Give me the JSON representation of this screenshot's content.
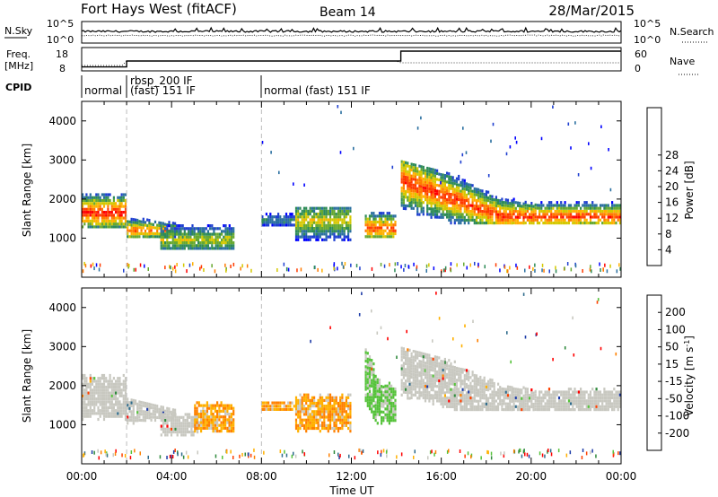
{
  "header": {
    "station": "Fort Hays West (fitACF)",
    "beam": "Beam 14",
    "date": "28/Mar/2015"
  },
  "sky_panel": {
    "left_label": "N.Sky",
    "right_label": "N.Search",
    "ticks": [
      "10^5",
      "10^0"
    ]
  },
  "freq_panel": {
    "left_label_line1": "Freq.",
    "left_label_line2": "[MHz]",
    "left_ticks": [
      "18",
      "8"
    ],
    "right_ticks": [
      "60",
      "0"
    ],
    "right_label": "Nave",
    "freq_steps": [
      {
        "from_hour": 0,
        "to_hour": 2.0,
        "mhz": 10
      },
      {
        "from_hour": 2.0,
        "to_hour": 14.2,
        "mhz": 13
      },
      {
        "from_hour": 14.2,
        "to_hour": 24,
        "mhz": 18
      }
    ]
  },
  "cpid": {
    "label": "CPID",
    "segments": [
      {
        "text": "normal",
        "from_hour": 0
      },
      {
        "text": "rbsp_200 IF",
        "from_hour": 2.0
      },
      {
        "text": "(fast) 151 IF",
        "from_hour": 2.0
      },
      {
        "text": "normal (fast) 151 IF",
        "from_hour": 8.0
      }
    ]
  },
  "chart_data": [
    {
      "type": "heatmap",
      "name": "power",
      "ylabel": "Slant Range [km]",
      "xlabel": "",
      "xlim": [
        0,
        24
      ],
      "ylim": [
        0,
        4500
      ],
      "yticks": [
        "1000",
        "2000",
        "3000",
        "4000"
      ],
      "xticks": [
        "00:00",
        "04:00",
        "08:00",
        "12:00",
        "16:00",
        "20:00",
        "00:00"
      ],
      "colorbar": {
        "label": "Power [dB]",
        "ticks": [
          "4",
          "8",
          "12",
          "16",
          "20",
          "24",
          "28"
        ],
        "colors": [
          "#0000ff",
          "#1f3fd0",
          "#2a6fa0",
          "#2e8b57",
          "#66a830",
          "#d4c800",
          "#ffb000",
          "#ff7a00",
          "#ff3b00",
          "#ff0000"
        ]
      },
      "regions": [
        {
          "t0": 0.0,
          "t1": 2.0,
          "r0": 1250,
          "r1": 2300,
          "peak": 1650,
          "strength": 0.95
        },
        {
          "t0": 2.0,
          "t1": 4.2,
          "r0": 1000,
          "r1": 1700,
          "peak": 1200,
          "strength": 0.8
        },
        {
          "t0": 3.5,
          "t1": 6.8,
          "r0": 700,
          "r1": 1500,
          "peak": 950,
          "strength": 0.55
        },
        {
          "t0": 8.0,
          "t1": 9.5,
          "r0": 1300,
          "r1": 1650,
          "peak": 1450,
          "strength": 0.35
        },
        {
          "t0": 9.5,
          "t1": 12.0,
          "r0": 700,
          "r1": 1800,
          "peak": 1450,
          "strength": 0.6
        },
        {
          "t0": 12.6,
          "t1": 14.0,
          "r0": 1000,
          "r1": 1900,
          "peak": 1250,
          "strength": 0.85
        },
        {
          "t0": 14.2,
          "t1": 24.0,
          "r0": 1350,
          "r1": 3000,
          "peak": 1550,
          "strength": 0.9
        }
      ]
    },
    {
      "type": "heatmap",
      "name": "velocity",
      "ylabel": "Slant Range [km]",
      "xlabel": "Time UT",
      "xlim": [
        0,
        24
      ],
      "ylim": [
        0,
        4500
      ],
      "yticks": [
        "1000",
        "2000",
        "3000",
        "4000"
      ],
      "xticks": [
        "00:00",
        "04:00",
        "08:00",
        "12:00",
        "16:00",
        "20:00",
        "00:00"
      ],
      "colorbar": {
        "label": "Velocity [m s",
        "label_sup": "-1",
        "label_end": "]",
        "ticks": [
          "200",
          "100",
          "50",
          "15",
          "-15",
          "-50",
          "-100",
          "-200"
        ],
        "colors": [
          "#1e3ca8",
          "#2e6b8c",
          "#2f8a3c",
          "#55c23a",
          "#c8c8c0",
          "#ffb000",
          "#ff8000",
          "#ff4000",
          "#ff0000"
        ]
      },
      "regions": [
        {
          "t0": 0.0,
          "t1": 2.0,
          "r0": 1100,
          "r1": 2300,
          "kind": "ground"
        },
        {
          "t0": 2.0,
          "t1": 4.2,
          "r0": 1000,
          "r1": 1700,
          "kind": "ground"
        },
        {
          "t0": 3.5,
          "t1": 5.2,
          "r0": 700,
          "r1": 1300,
          "kind": "ground"
        },
        {
          "t0": 5.0,
          "t1": 6.8,
          "r0": 800,
          "r1": 1600,
          "kind": "neg"
        },
        {
          "t0": 8.0,
          "t1": 9.5,
          "r0": 1350,
          "r1": 1600,
          "kind": "neg"
        },
        {
          "t0": 9.5,
          "t1": 12.0,
          "r0": 800,
          "r1": 1800,
          "kind": "neg"
        },
        {
          "t0": 12.6,
          "t1": 14.0,
          "r0": 1000,
          "r1": 1900,
          "kind": "pos"
        },
        {
          "t0": 14.2,
          "t1": 24.0,
          "r0": 1350,
          "r1": 3000,
          "kind": "ground"
        }
      ]
    }
  ]
}
